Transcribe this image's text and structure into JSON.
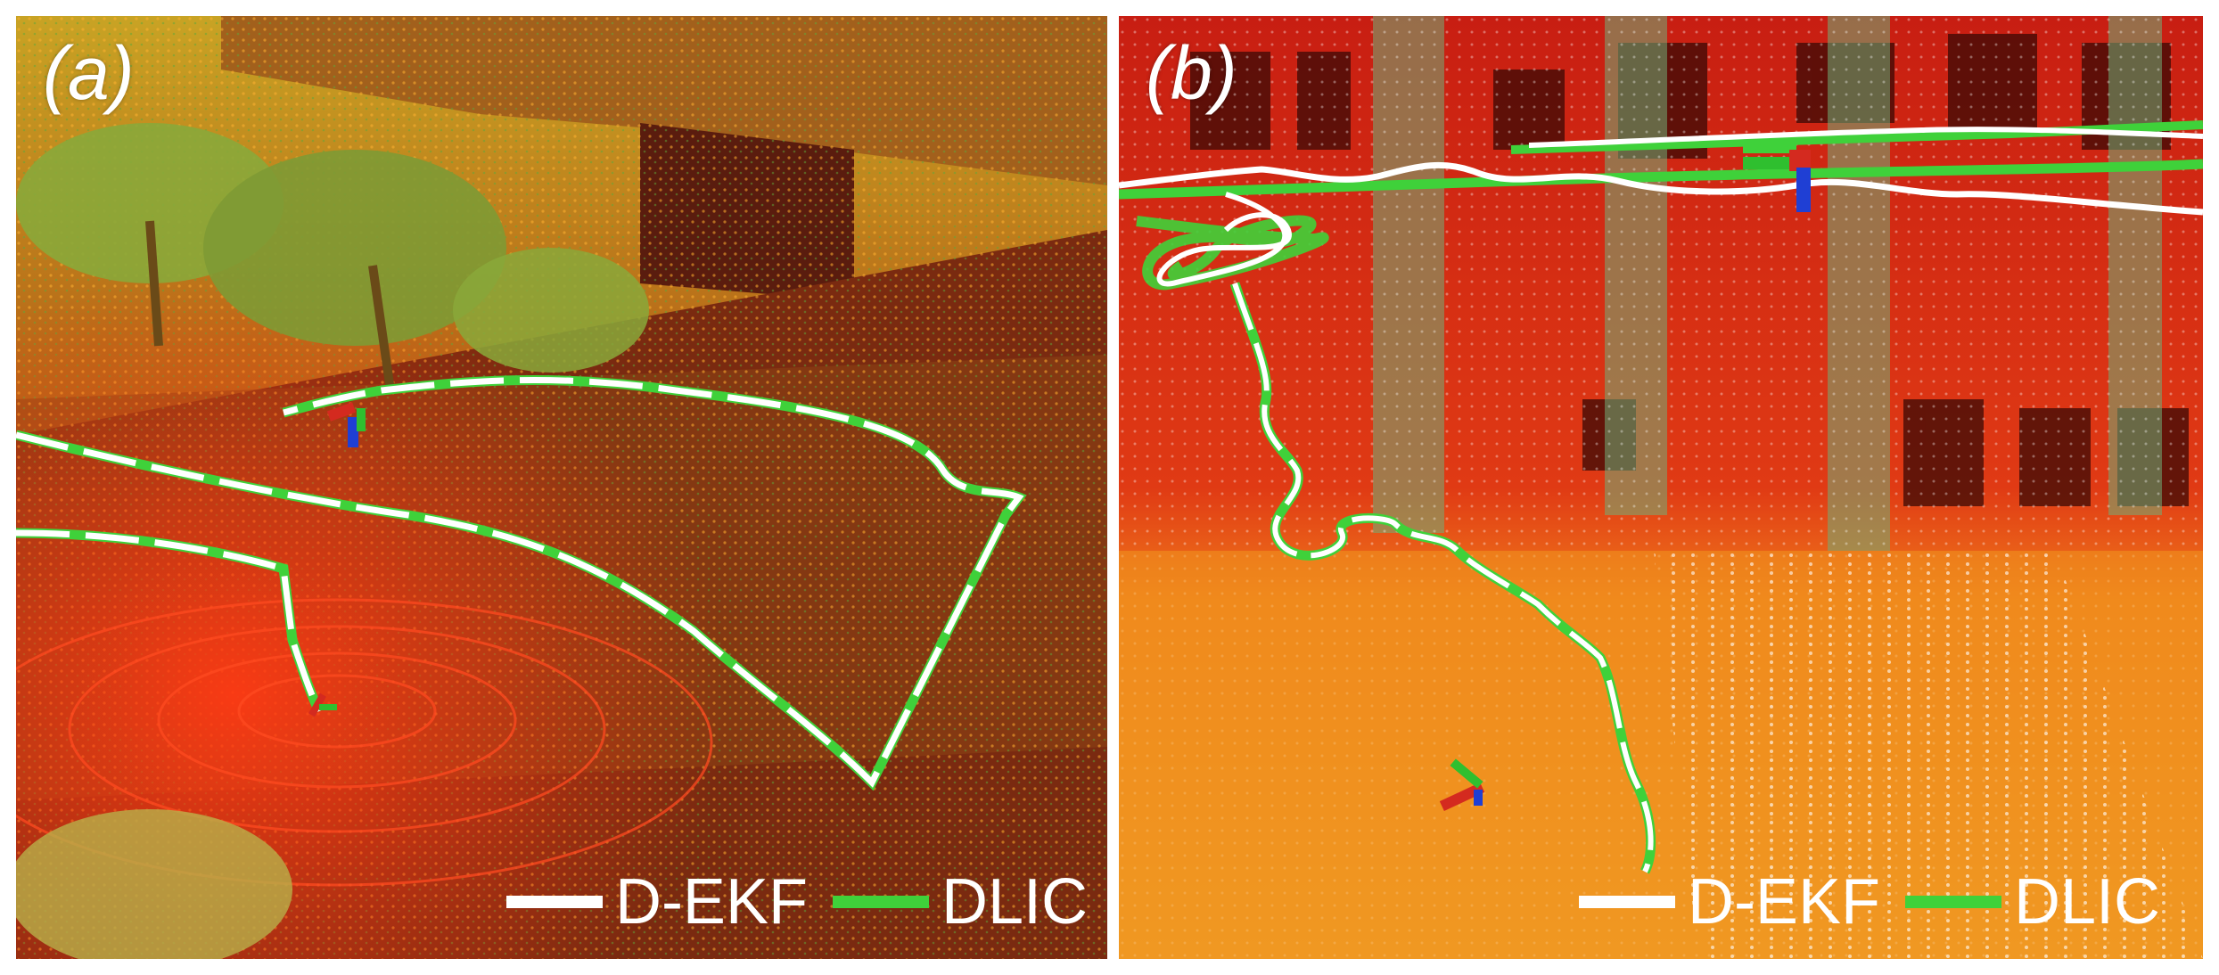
{
  "panels": [
    {
      "label": "(a)",
      "scene": "outdoor street lidar point cloud with trees and building",
      "legend": [
        {
          "label": "D-EKF",
          "color": "#ffffff"
        },
        {
          "label": "DLIC",
          "color": "#3fd13a"
        }
      ]
    },
    {
      "label": "(b)",
      "scene": "indoor hall lidar point cloud with pillars",
      "legend": [
        {
          "label": "D-EKF",
          "color": "#ffffff"
        },
        {
          "label": "DLIC",
          "color": "#3fd13a"
        }
      ]
    }
  ],
  "colors": {
    "trajectory_dekf": "#ffffff",
    "trajectory_dlic": "#3fd13a",
    "axis_x": "#d42a1f",
    "axis_y": "#2fbf2f",
    "axis_z": "#1f3fd4"
  }
}
